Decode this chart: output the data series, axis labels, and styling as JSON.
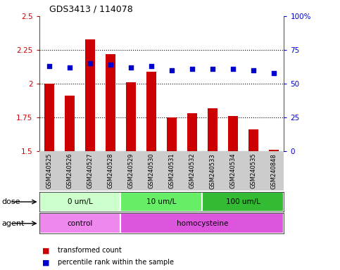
{
  "title": "GDS3413 / 114078",
  "samples": [
    "GSM240525",
    "GSM240526",
    "GSM240527",
    "GSM240528",
    "GSM240529",
    "GSM240530",
    "GSM240531",
    "GSM240532",
    "GSM240533",
    "GSM240534",
    "GSM240535",
    "GSM240848"
  ],
  "transformed_count": [
    2.0,
    1.91,
    2.33,
    2.22,
    2.01,
    2.09,
    1.75,
    1.78,
    1.82,
    1.76,
    1.66,
    1.51
  ],
  "percentile_rank": [
    63,
    62,
    65,
    64,
    62,
    63,
    60,
    61,
    61,
    61,
    60,
    58
  ],
  "ylim_left": [
    1.5,
    2.5
  ],
  "ylim_right": [
    0,
    100
  ],
  "yticks_left": [
    1.5,
    1.75,
    2.0,
    2.25,
    2.5
  ],
  "yticks_right": [
    0,
    25,
    50,
    75,
    100
  ],
  "ytick_labels_left": [
    "1.5",
    "1.75",
    "2",
    "2.25",
    "2.5"
  ],
  "ytick_labels_right": [
    "0",
    "25",
    "50",
    "75",
    "100%"
  ],
  "bar_color": "#cc0000",
  "dot_color": "#0000cc",
  "bar_bottom": 1.5,
  "dose_groups": [
    {
      "label": "0 um/L",
      "start": 0,
      "end": 3,
      "color": "#ccffcc"
    },
    {
      "label": "10 um/L",
      "start": 4,
      "end": 7,
      "color": "#66ee66"
    },
    {
      "label": "100 um/L",
      "start": 8,
      "end": 11,
      "color": "#33bb33"
    }
  ],
  "agent_groups": [
    {
      "label": "control",
      "start": 0,
      "end": 3,
      "color": "#ee88ee"
    },
    {
      "label": "homocysteine",
      "start": 4,
      "end": 11,
      "color": "#dd55dd"
    }
  ],
  "dose_label": "dose",
  "agent_label": "agent",
  "legend_bar_label": "transformed count",
  "legend_dot_label": "percentile rank within the sample",
  "axis_label_color_left": "#cc0000",
  "axis_label_color_right": "#0000cc",
  "tick_area_color": "#cccccc"
}
